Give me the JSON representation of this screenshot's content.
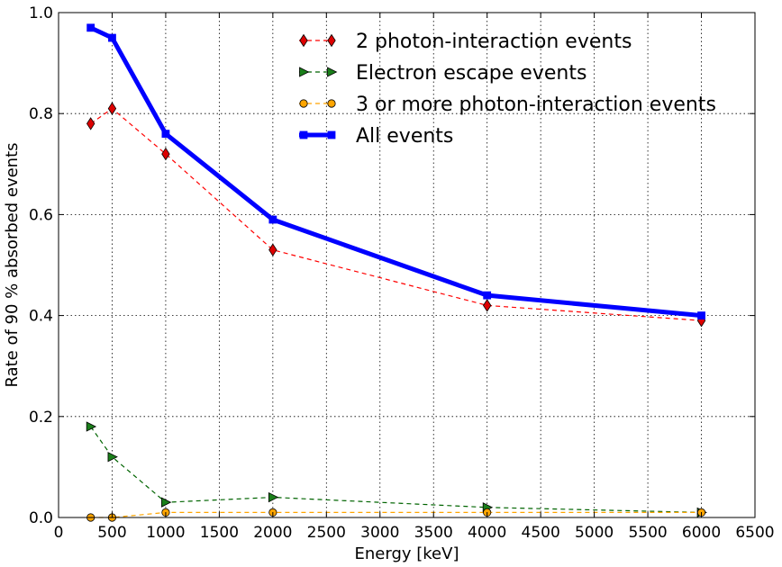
{
  "chart_data": {
    "type": "line",
    "title": "",
    "xlabel": "Energy [keV]",
    "ylabel": "Rate of 90 % absorbed events",
    "xlim": [
      0,
      6500
    ],
    "ylim": [
      0.0,
      1.0
    ],
    "xticks": [
      0,
      500,
      1000,
      1500,
      2000,
      2500,
      3000,
      3500,
      4000,
      4500,
      5000,
      5500,
      6000,
      6500
    ],
    "xtick_labels": [
      "0",
      "500",
      "1000",
      "1500",
      "2000",
      "2500",
      "3000",
      "3500",
      "4000",
      "4500",
      "5000",
      "5500",
      "6000",
      "6500"
    ],
    "yticks": [
      0.0,
      0.2,
      0.4,
      0.6,
      0.8,
      1.0
    ],
    "ytick_labels": [
      "0.0",
      "0.2",
      "0.4",
      "0.6",
      "0.8",
      "1.0"
    ],
    "grid": true,
    "legend_position": "top-center",
    "x": [
      300,
      500,
      1000,
      2000,
      4000,
      6000
    ],
    "series": [
      {
        "name": "2 photon-interaction events",
        "values": [
          0.78,
          0.81,
          0.72,
          0.53,
          0.42,
          0.39
        ],
        "color": "#ff0000",
        "marker_fill": "#dd0000",
        "marker": "diamond",
        "line_style": "dashed"
      },
      {
        "name": "Electron escape events",
        "values": [
          0.18,
          0.12,
          0.03,
          0.04,
          0.02,
          0.01
        ],
        "color": "#006400",
        "marker_fill": "#1a7f1a",
        "marker": "triangle-right",
        "line_style": "dashed"
      },
      {
        "name": "3 or more photon-interaction events",
        "values": [
          0.0,
          0.0,
          0.01,
          0.01,
          0.01,
          0.01
        ],
        "color": "#ffa500",
        "marker_fill": "#ffa500",
        "marker": "circle",
        "line_style": "dashed"
      },
      {
        "name": "All events",
        "values": [
          0.97,
          0.95,
          0.76,
          0.59,
          0.44,
          0.4
        ],
        "color": "#0000ff",
        "marker_fill": "#0000ff",
        "marker": "square",
        "line_style": "solid"
      }
    ]
  }
}
